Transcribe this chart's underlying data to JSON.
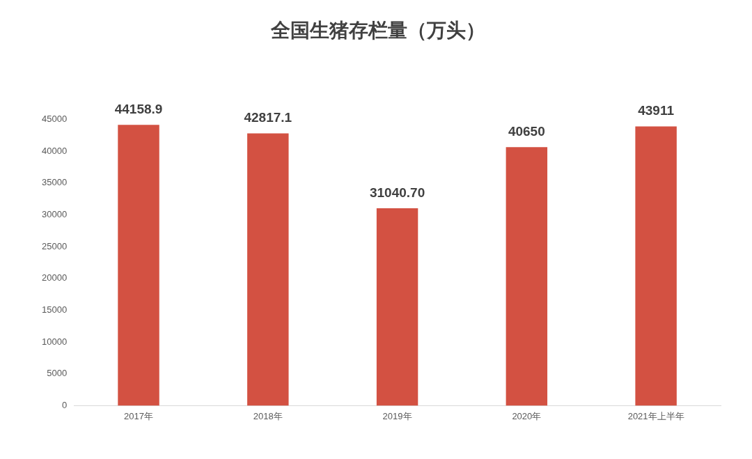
{
  "chart_data": {
    "type": "bar",
    "title": "全国生猪存栏量（万头）",
    "categories": [
      "2017年",
      "2018年",
      "2019年",
      "2020年",
      "2021年上半年"
    ],
    "values": [
      44158.9,
      42817.1,
      31040.7,
      40650,
      43911
    ],
    "value_labels": [
      "44158.9",
      "42817.1",
      "31040.70",
      "40650",
      "43911"
    ],
    "color": "#d35142",
    "ylim": [
      0,
      45000
    ],
    "yticks": [
      0,
      5000,
      10000,
      15000,
      20000,
      25000,
      30000,
      35000,
      40000,
      45000
    ],
    "grid": false,
    "legend": false
  }
}
